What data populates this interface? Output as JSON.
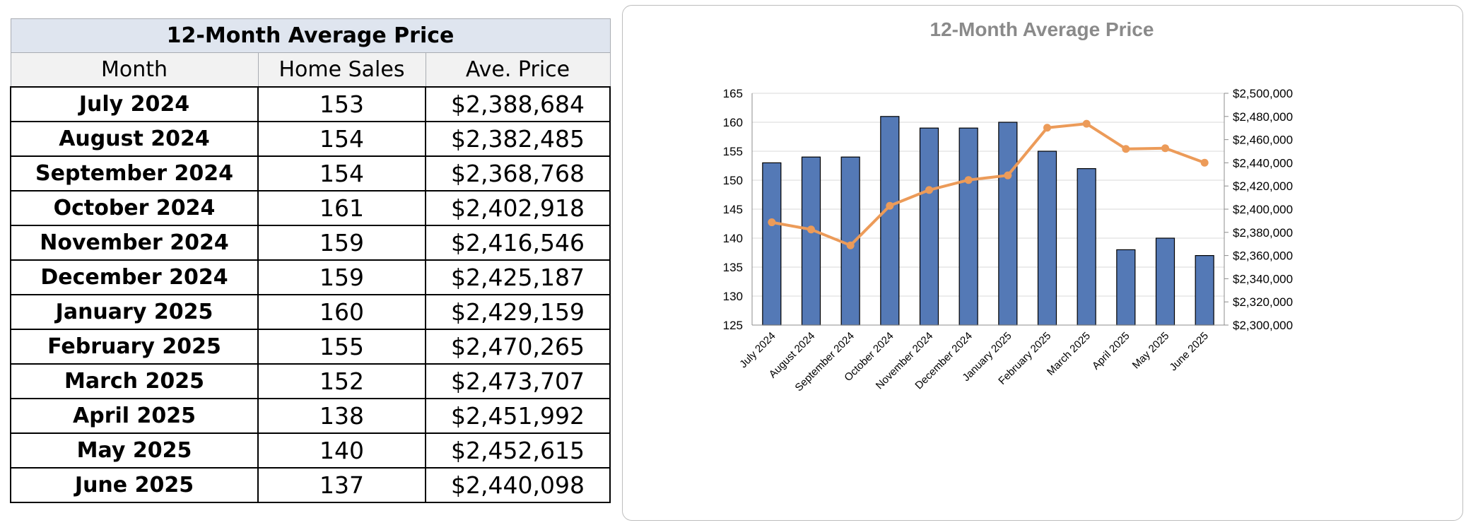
{
  "table": {
    "title": "12-Month Average Price",
    "headers": [
      "Month",
      "Home Sales",
      "Ave. Price"
    ],
    "rows": [
      {
        "month": "July 2024",
        "sales": "153",
        "price": "$2,388,684"
      },
      {
        "month": "August 2024",
        "sales": "154",
        "price": "$2,382,485"
      },
      {
        "month": "September 2024",
        "sales": "154",
        "price": "$2,368,768"
      },
      {
        "month": "October 2024",
        "sales": "161",
        "price": "$2,402,918"
      },
      {
        "month": "November 2024",
        "sales": "159",
        "price": "$2,416,546"
      },
      {
        "month": "December 2024",
        "sales": "159",
        "price": "$2,425,187"
      },
      {
        "month": "January 2025",
        "sales": "160",
        "price": "$2,429,159"
      },
      {
        "month": "February 2025",
        "sales": "155",
        "price": "$2,470,265"
      },
      {
        "month": "March 2025",
        "sales": "152",
        "price": "$2,473,707"
      },
      {
        "month": "April 2025",
        "sales": "138",
        "price": "$2,451,992"
      },
      {
        "month": "May 2025",
        "sales": "140",
        "price": "$2,452,615"
      },
      {
        "month": "June 2025",
        "sales": "137",
        "price": "$2,440,098"
      }
    ]
  },
  "chart_data": {
    "type": "bar",
    "title": "12-Month Average Price",
    "categories": [
      "July 2024",
      "August 2024",
      "September 2024",
      "October 2024",
      "November 2024",
      "December 2024",
      "January 2025",
      "February 2025",
      "March 2025",
      "April 2025",
      "May 2025",
      "June 2025"
    ],
    "series": [
      {
        "type": "bar",
        "axis": "left",
        "color": "#5479b6",
        "values": [
          153,
          154,
          154,
          161,
          159,
          159,
          160,
          155,
          152,
          138,
          140,
          137
        ]
      },
      {
        "type": "line",
        "axis": "right",
        "color": "#ec9b59",
        "values": [
          2388684,
          2382485,
          2368768,
          2402918,
          2416546,
          2425187,
          2429159,
          2470265,
          2473707,
          2451992,
          2452615,
          2440098
        ]
      }
    ],
    "y_left": {
      "lim": [
        125,
        165
      ],
      "ticks": [
        125,
        130,
        135,
        140,
        145,
        150,
        155,
        160,
        165
      ],
      "tick_labels": [
        "125",
        "130",
        "135",
        "140",
        "145",
        "150",
        "155",
        "160",
        "165"
      ]
    },
    "y_right": {
      "lim": [
        2300000,
        2500000
      ],
      "ticks": [
        2300000,
        2320000,
        2340000,
        2360000,
        2380000,
        2400000,
        2420000,
        2440000,
        2460000,
        2480000,
        2500000
      ],
      "tick_labels": [
        "$2,300,000",
        "$2,320,000",
        "$2,340,000",
        "$2,360,000",
        "$2,380,000",
        "$2,400,000",
        "$2,420,000",
        "$2,440,000",
        "$2,460,000",
        "$2,480,000",
        "$2,500,000"
      ]
    },
    "xlabel": "",
    "ylabel": "",
    "grid": true,
    "legend": "none",
    "colors": {
      "bar_fill": "#5479b6",
      "line": "#ec9b59",
      "gridline": "#d9d9d9",
      "title": "#8a8a8a"
    }
  }
}
